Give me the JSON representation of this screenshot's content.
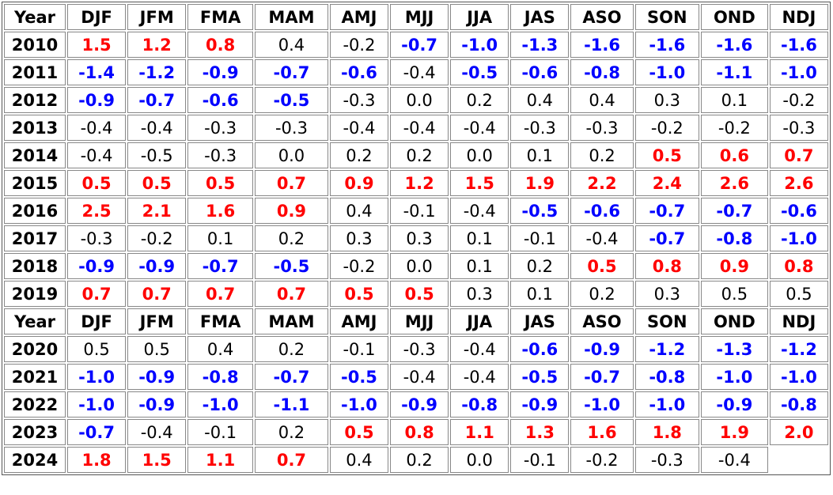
{
  "header": {
    "year_label": "Year",
    "seasons": [
      "DJF",
      "JFM",
      "FMA",
      "MAM",
      "AMJ",
      "MJJ",
      "JJA",
      "JAS",
      "ASO",
      "SON",
      "OND",
      "NDJ"
    ]
  },
  "colors": {
    "el_nino": "#ff0000",
    "la_nina": "#0000ff",
    "neutral": "#000000"
  },
  "blocks": [
    {
      "rows": [
        {
          "year": "2010",
          "phase": "EEENNLLLLLLL",
          "values": [
            "1.5",
            "1.2",
            "0.8",
            "0.4",
            "-0.2",
            "-0.7",
            "-1.0",
            "-1.3",
            "-1.6",
            "-1.6",
            "-1.6",
            "-1.6"
          ]
        },
        {
          "year": "2011",
          "phase": "LLLLLNLLLLLL",
          "values": [
            "-1.4",
            "-1.2",
            "-0.9",
            "-0.7",
            "-0.6",
            "-0.4",
            "-0.5",
            "-0.6",
            "-0.8",
            "-1.0",
            "-1.1",
            "-1.0"
          ]
        },
        {
          "year": "2012",
          "phase": "LLLLNNNNNNNN",
          "values": [
            "-0.9",
            "-0.7",
            "-0.6",
            "-0.5",
            "-0.3",
            "0.0",
            "0.2",
            "0.4",
            "0.4",
            "0.3",
            "0.1",
            "-0.2"
          ]
        },
        {
          "year": "2013",
          "phase": "NNNNNNNNNNNN",
          "values": [
            "-0.4",
            "-0.4",
            "-0.3",
            "-0.3",
            "-0.4",
            "-0.4",
            "-0.4",
            "-0.3",
            "-0.3",
            "-0.2",
            "-0.2",
            "-0.3"
          ]
        },
        {
          "year": "2014",
          "phase": "NNNNNNNNNEEE",
          "values": [
            "-0.4",
            "-0.5",
            "-0.3",
            "0.0",
            "0.2",
            "0.2",
            "0.0",
            "0.1",
            "0.2",
            "0.5",
            "0.6",
            "0.7"
          ]
        },
        {
          "year": "2015",
          "phase": "EEEEEEEEEEEE",
          "values": [
            "0.5",
            "0.5",
            "0.5",
            "0.7",
            "0.9",
            "1.2",
            "1.5",
            "1.9",
            "2.2",
            "2.4",
            "2.6",
            "2.6"
          ]
        },
        {
          "year": "2016",
          "phase": "EEEENNNLLLLL",
          "values": [
            "2.5",
            "2.1",
            "1.6",
            "0.9",
            "0.4",
            "-0.1",
            "-0.4",
            "-0.5",
            "-0.6",
            "-0.7",
            "-0.7",
            "-0.6"
          ]
        },
        {
          "year": "2017",
          "phase": "NNNNNNNNNLLL",
          "values": [
            "-0.3",
            "-0.2",
            "0.1",
            "0.2",
            "0.3",
            "0.3",
            "0.1",
            "-0.1",
            "-0.4",
            "-0.7",
            "-0.8",
            "-1.0"
          ]
        },
        {
          "year": "2018",
          "phase": "LLLLNNNNEEEE",
          "values": [
            "-0.9",
            "-0.9",
            "-0.7",
            "-0.5",
            "-0.2",
            "0.0",
            "0.1",
            "0.2",
            "0.5",
            "0.8",
            "0.9",
            "0.8"
          ]
        },
        {
          "year": "2019",
          "phase": "EEEEEENNNNNN",
          "values": [
            "0.7",
            "0.7",
            "0.7",
            "0.7",
            "0.5",
            "0.5",
            "0.3",
            "0.1",
            "0.2",
            "0.3",
            "0.5",
            "0.5"
          ]
        }
      ]
    },
    {
      "rows": [
        {
          "year": "2020",
          "phase": "NNNNNNNLLLLL",
          "values": [
            "0.5",
            "0.5",
            "0.4",
            "0.2",
            "-0.1",
            "-0.3",
            "-0.4",
            "-0.6",
            "-0.9",
            "-1.2",
            "-1.3",
            "-1.2"
          ]
        },
        {
          "year": "2021",
          "phase": "LLLLLNNLLLLL",
          "values": [
            "-1.0",
            "-0.9",
            "-0.8",
            "-0.7",
            "-0.5",
            "-0.4",
            "-0.4",
            "-0.5",
            "-0.7",
            "-0.8",
            "-1.0",
            "-1.0"
          ]
        },
        {
          "year": "2022",
          "phase": "LLLLLLLLLLLL",
          "values": [
            "-1.0",
            "-0.9",
            "-1.0",
            "-1.1",
            "-1.0",
            "-0.9",
            "-0.8",
            "-0.9",
            "-1.0",
            "-1.0",
            "-0.9",
            "-0.8"
          ]
        },
        {
          "year": "2023",
          "phase": "LNNNEEEEEEEE",
          "values": [
            "-0.7",
            "-0.4",
            "-0.1",
            "0.2",
            "0.5",
            "0.8",
            "1.1",
            "1.3",
            "1.6",
            "1.8",
            "1.9",
            "2.0"
          ]
        },
        {
          "year": "2024",
          "phase": "EEEENNNNNNN",
          "values": [
            "1.8",
            "1.5",
            "1.1",
            "0.7",
            "0.4",
            "0.2",
            "0.0",
            "-0.1",
            "-0.2",
            "-0.3",
            "-0.4"
          ]
        }
      ]
    }
  ]
}
